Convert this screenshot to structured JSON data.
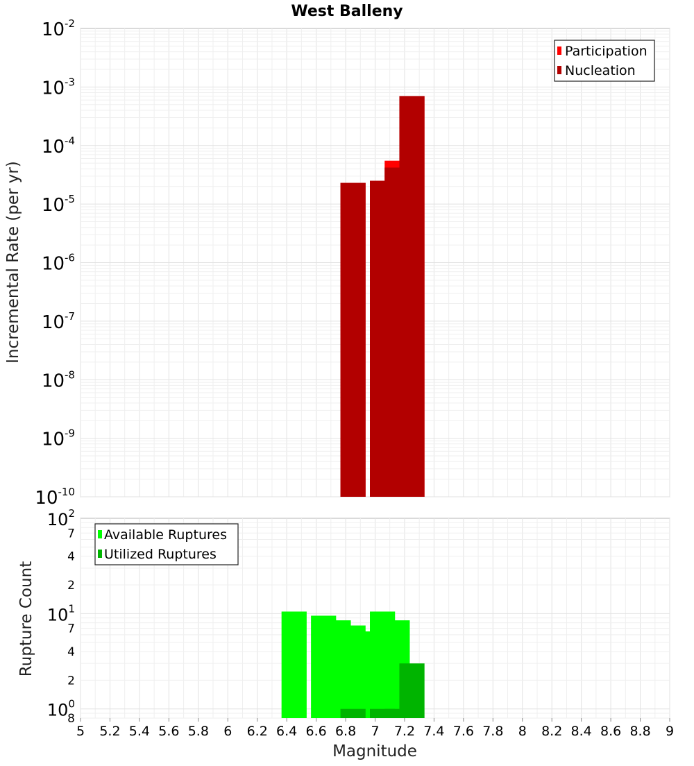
{
  "title": "West Balleny",
  "colors": {
    "participation": "#ff0000",
    "nucleation": "#b20000",
    "available": "#00ff00",
    "utilized": "#00b400",
    "grid": "#e2e2e2",
    "frame": "#b4b4b4"
  },
  "chart_data": [
    {
      "type": "bar",
      "title": "West Balleny",
      "xlabel": "Magnitude",
      "ylabel": "Incremental Rate (per yr)",
      "y_scale": "log",
      "xlim": [
        5,
        9
      ],
      "ylim": [
        1e-10,
        0.01
      ],
      "grid": true,
      "legend_position": "top-right",
      "y_tick_labels": [
        {
          "value": 1e-10,
          "base": "10",
          "exp": "-10"
        },
        {
          "value": 1e-09,
          "base": "10",
          "exp": "-9"
        },
        {
          "value": 1e-08,
          "base": "10",
          "exp": "-8"
        },
        {
          "value": 1e-07,
          "base": "10",
          "exp": "-7"
        },
        {
          "value": 1e-06,
          "base": "10",
          "exp": "-6"
        },
        {
          "value": 1e-05,
          "base": "10",
          "exp": "-5"
        },
        {
          "value": 0.0001,
          "base": "10",
          "exp": "-4"
        },
        {
          "value": 0.001,
          "base": "10",
          "exp": "-3"
        },
        {
          "value": 0.01,
          "base": "10",
          "exp": "-2"
        }
      ],
      "series": [
        {
          "name": "Participation",
          "color": "#ff0000",
          "points": [
            {
              "x": 6.85,
              "y": 2.3e-05
            },
            {
              "x": 7.05,
              "y": 2.5e-05
            },
            {
              "x": 7.15,
              "y": 5.5e-05
            },
            {
              "x": 7.25,
              "y": 0.0007
            }
          ]
        },
        {
          "name": "Nucleation",
          "color": "#b20000",
          "points": [
            {
              "x": 6.85,
              "y": 2.3e-05
            },
            {
              "x": 7.05,
              "y": 2.5e-05
            },
            {
              "x": 7.15,
              "y": 4.2e-05
            },
            {
              "x": 7.25,
              "y": 0.0007
            }
          ]
        }
      ]
    },
    {
      "type": "bar",
      "xlabel": "Magnitude",
      "ylabel": "Rupture Count",
      "y_scale": "log",
      "xlim": [
        5,
        9
      ],
      "ylim": [
        0.8,
        100
      ],
      "grid": true,
      "legend_position": "top-left",
      "x_ticks": [
        "5",
        "5.2",
        "5.4",
        "5.6",
        "5.8",
        "6",
        "6.2",
        "6.4",
        "6.6",
        "6.8",
        "7",
        "7.2",
        "7.4",
        "7.6",
        "7.8",
        "8",
        "8.2",
        "8.4",
        "8.6",
        "8.8",
        "9"
      ],
      "y_tick_labels": [
        {
          "value": 100,
          "base": "10",
          "exp": "2"
        },
        {
          "value": 70,
          "base": "7",
          "exp": ""
        },
        {
          "value": 40,
          "base": "4",
          "exp": ""
        },
        {
          "value": 20,
          "base": "2",
          "exp": ""
        },
        {
          "value": 10,
          "base": "10",
          "exp": "1"
        },
        {
          "value": 7,
          "base": "7",
          "exp": ""
        },
        {
          "value": 4,
          "base": "4",
          "exp": ""
        },
        {
          "value": 2,
          "base": "2",
          "exp": ""
        },
        {
          "value": 1,
          "base": "10",
          "exp": "0"
        },
        {
          "value": 0.8,
          "base": "8",
          "exp": ""
        }
      ],
      "series": [
        {
          "name": "Available Ruptures",
          "color": "#00ff00",
          "points": [
            {
              "x": 6.45,
              "y": 10.5
            },
            {
              "x": 6.65,
              "y": 9.5
            },
            {
              "x": 6.75,
              "y": 8.5
            },
            {
              "x": 6.85,
              "y": 7.5
            },
            {
              "x": 6.95,
              "y": 6.5
            },
            {
              "x": 7.05,
              "y": 10.5
            },
            {
              "x": 7.15,
              "y": 8.5
            }
          ]
        },
        {
          "name": "Utilized Ruptures",
          "color": "#00b400",
          "points": [
            {
              "x": 6.85,
              "y": 1
            },
            {
              "x": 7.05,
              "y": 1
            },
            {
              "x": 7.15,
              "y": 1
            },
            {
              "x": 7.25,
              "y": 3
            }
          ]
        }
      ]
    }
  ]
}
